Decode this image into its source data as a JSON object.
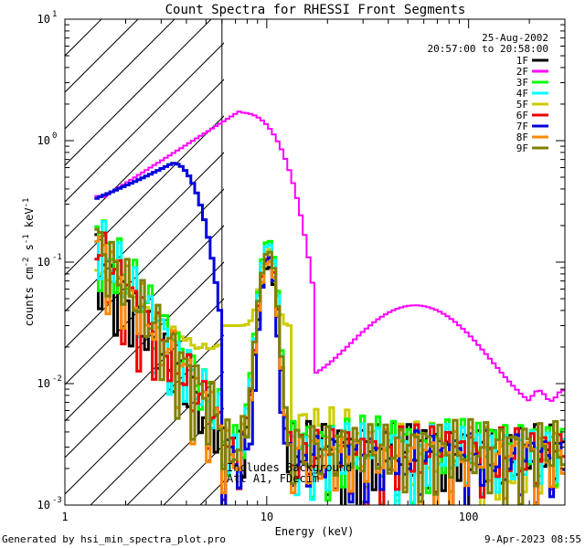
{
  "chart_data": {
    "type": "line",
    "title": "Count Spectra for RHESSI Front Segments",
    "xlabel": "Energy (keV)",
    "ylabel": "counts cm^-2 s^-1 keV^-1",
    "ylabel_parts": {
      "base": "counts cm",
      "exp1": "-2",
      "mid1": " s",
      "exp2": "-1",
      "mid2": " keV",
      "exp3": "-1"
    },
    "x_scale": "log",
    "y_scale": "log",
    "xlim": [
      1,
      300
    ],
    "ylim": [
      0.001,
      10
    ],
    "x_ticks": [
      {
        "value": 1,
        "label": "1"
      },
      {
        "value": 10,
        "label": "10"
      },
      {
        "value": 100,
        "label": "100"
      }
    ],
    "y_ticks": [
      {
        "value": 0.001,
        "label": "10",
        "exp": "-3"
      },
      {
        "value": 0.01,
        "label": "10",
        "exp": "-2"
      },
      {
        "value": 0.1,
        "label": "10",
        "exp": "-1"
      },
      {
        "value": 1,
        "label": "10",
        "exp": "0"
      },
      {
        "value": 10,
        "label": "10",
        "exp": "1"
      }
    ],
    "threshold_energy_keV": 6,
    "legend_header": [
      "25-Aug-2002",
      "20:57:00 to 20:58:00"
    ],
    "annotations": [
      "Includes Background",
      "Att A1, FDecim"
    ],
    "series": [
      {
        "name": "1F",
        "color": "#000000",
        "base_low": 0.12,
        "noise_level": 0.0029,
        "peak": 0.09,
        "step": 0.5
      },
      {
        "name": "2F",
        "color": "#ff00ff",
        "base_low": 0.35,
        "noise_level": 0.012,
        "peak": 1.7,
        "step": 0.6
      },
      {
        "name": "3F",
        "color": "#00ff00",
        "base_low": 0.19,
        "noise_level": 0.0032,
        "peak": 0.15,
        "step": 0.7
      },
      {
        "name": "4F",
        "color": "#00ffff",
        "base_low": 0.17,
        "noise_level": 0.0028,
        "peak": 0.14,
        "step": 0.8
      },
      {
        "name": "5F",
        "color": "#cccc00",
        "base_low": 0.09,
        "noise_level": 0.004,
        "peak": 0.1,
        "step": 0.9
      },
      {
        "name": "6F",
        "color": "#ee0000",
        "base_low": 0.14,
        "noise_level": 0.0027,
        "peak": 0.11,
        "step": 1.0
      },
      {
        "name": "7F",
        "color": "#0000dd",
        "base_low": 0.33,
        "noise_level": 0.0025,
        "peak": 0.11,
        "step": 1.1
      },
      {
        "name": "8F",
        "color": "#ff8800",
        "base_low": 0.15,
        "noise_level": 0.0026,
        "peak": 0.1,
        "step": 1.2
      },
      {
        "name": "9F",
        "color": "#808000",
        "base_low": 0.16,
        "noise_level": 0.003,
        "peak": 0.12,
        "step": 1.3
      }
    ]
  },
  "footer": {
    "generator": "Generated by hsi_min_spectra_plot.pro",
    "timestamp": "9-Apr-2023 08:55"
  }
}
